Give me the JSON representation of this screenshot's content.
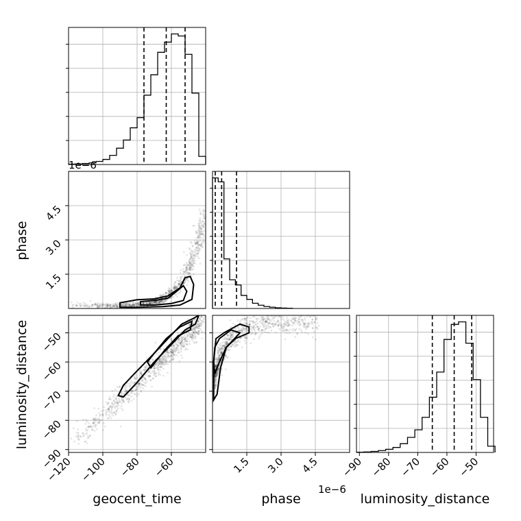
{
  "chart_data": {
    "type": "corner",
    "parameters": [
      "geocent_time",
      "phase",
      "luminosity_distance"
    ],
    "axis_labels": {
      "geocent_time": "geocent_time",
      "phase": "phase",
      "luminosity_distance": "luminosity_distance"
    },
    "offset_labels": {
      "geocent_time": "1e−6",
      "phase": "1e−6"
    },
    "ranges": {
      "geocent_time": [
        -120,
        -40
      ],
      "phase": [
        0,
        6.0
      ],
      "luminosity_distance": [
        -91,
        -44
      ]
    },
    "ticks": {
      "geocent_time": {
        "values": [
          -120,
          -100,
          -80,
          -60
        ],
        "labels": [
          "−120",
          "−100",
          "−80",
          "−60"
        ]
      },
      "phase": {
        "values": [
          1.5,
          3.0,
          4.5
        ],
        "labels": [
          "1.5",
          "3.0",
          "4.5"
        ]
      },
      "luminosity_distance": {
        "values": [
          -90,
          -80,
          -70,
          -60,
          -50
        ],
        "labels": [
          "−90",
          "−80",
          "−70",
          "−60",
          "−50"
        ]
      }
    },
    "quantiles": {
      "geocent_time": [
        -76,
        -63,
        -52
      ],
      "phase": [
        0.12,
        0.4,
        1.05
      ],
      "luminosity_distance": [
        -65,
        -57.5,
        -51.5
      ]
    },
    "histograms": {
      "geocent_time": {
        "bin_edges": [
          -120,
          -116,
          -112,
          -108,
          -104,
          -100,
          -96,
          -92,
          -88,
          -84,
          -80,
          -76,
          -72,
          -68,
          -64,
          -60,
          -56,
          -52,
          -48,
          -44,
          -40
        ],
        "heights": [
          0.002,
          0.003,
          0.005,
          0.008,
          0.015,
          0.025,
          0.045,
          0.08,
          0.12,
          0.18,
          0.23,
          0.34,
          0.44,
          0.55,
          0.6,
          0.64,
          0.63,
          0.54,
          0.35,
          0.04
        ]
      },
      "phase": {
        "bin_edges": [
          0,
          0.25,
          0.5,
          0.75,
          1.0,
          1.25,
          1.5,
          1.75,
          2.0,
          2.25,
          2.5,
          2.75,
          3.0,
          3.25,
          3.5
        ],
        "heights": [
          1.0,
          0.97,
          0.38,
          0.22,
          0.18,
          0.1,
          0.07,
          0.04,
          0.025,
          0.015,
          0.01,
          0.005,
          0.003,
          0.002
        ]
      },
      "luminosity_distance": {
        "bin_edges": [
          -91,
          -88.5,
          -86,
          -83.5,
          -81,
          -78.5,
          -76,
          -73.5,
          -71,
          -68.5,
          -66,
          -63.5,
          -61,
          -58.5,
          -56,
          -53.5,
          -51,
          -48.5,
          -46,
          -43.5
        ],
        "heights": [
          0.002,
          0.004,
          0.008,
          0.015,
          0.025,
          0.04,
          0.07,
          0.12,
          0.18,
          0.28,
          0.44,
          0.64,
          0.9,
          1.02,
          1.04,
          0.87,
          0.58,
          0.28,
          0.05
        ]
      }
    },
    "pairs": [
      {
        "x": "geocent_time",
        "y": "phase",
        "contours": [
          [
            [
              -90,
              0.05
            ],
            [
              -90,
              0.25
            ],
            [
              -80,
              0.38
            ],
            [
              -70,
              0.42
            ],
            [
              -62,
              0.55
            ],
            [
              -55,
              0.9
            ],
            [
              -52,
              1.35
            ],
            [
              -49,
              1.4
            ],
            [
              -47,
              1.05
            ],
            [
              -48,
              0.4
            ],
            [
              -55,
              0.15
            ],
            [
              -65,
              0.08
            ],
            [
              -80,
              0.05
            ]
          ],
          [
            [
              -78,
              0.15
            ],
            [
              -78,
              0.3
            ],
            [
              -70,
              0.35
            ],
            [
              -62,
              0.45
            ],
            [
              -57,
              0.75
            ],
            [
              -53,
              1.0
            ],
            [
              -51,
              0.75
            ],
            [
              -53,
              0.35
            ],
            [
              -60,
              0.22
            ],
            [
              -70,
              0.15
            ]
          ]
        ]
      },
      {
        "x": "geocent_time",
        "y": "luminosity_distance",
        "contours": [
          [
            [
              -91,
              -71.5
            ],
            [
              -88,
              -72
            ],
            [
              -80,
              -67
            ],
            [
              -70,
              -60
            ],
            [
              -60,
              -54
            ],
            [
              -52,
              -49
            ],
            [
              -46,
              -47
            ],
            [
              -44,
              -44
            ],
            [
              -47,
              -45
            ],
            [
              -54,
              -47
            ],
            [
              -62,
              -52
            ],
            [
              -70,
              -57
            ],
            [
              -80,
              -63
            ],
            [
              -88,
              -68
            ]
          ],
          [
            [
              -72,
              -62
            ],
            [
              -64,
              -56
            ],
            [
              -56,
              -51
            ],
            [
              -49,
              -49
            ],
            [
              -48,
              -46
            ],
            [
              -55,
              -48
            ],
            [
              -63,
              -52
            ],
            [
              -70,
              -57
            ],
            [
              -74,
              -60
            ]
          ]
        ]
      },
      {
        "x": "phase",
        "y": "luminosity_distance",
        "contours": [
          [
            [
              0.05,
              -73
            ],
            [
              0.2,
              -71
            ],
            [
              0.35,
              -62
            ],
            [
              0.6,
              -55
            ],
            [
              1.0,
              -52
            ],
            [
              1.6,
              -50
            ],
            [
              1.6,
              -48
            ],
            [
              1.2,
              -47
            ],
            [
              0.5,
              -50
            ],
            [
              0.15,
              -52
            ],
            [
              0.05,
              -60
            ]
          ],
          [
            [
              0.1,
              -64
            ],
            [
              0.3,
              -60
            ],
            [
              0.6,
              -55
            ],
            [
              1.2,
              -50
            ],
            [
              0.8,
              -49
            ],
            [
              0.3,
              -52
            ],
            [
              0.1,
              -55
            ],
            [
              0.05,
              -60
            ]
          ]
        ]
      }
    ]
  }
}
